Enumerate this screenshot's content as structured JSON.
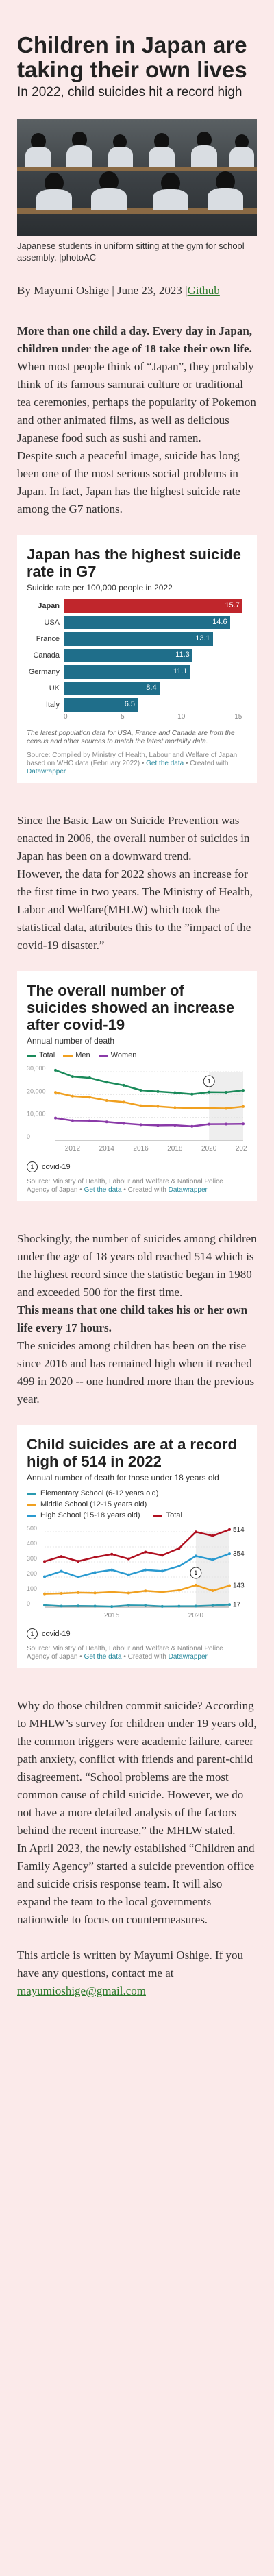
{
  "header": {
    "title": "Children in Japan are taking their own lives",
    "subtitle": "In 2022, child suicides hit a record high"
  },
  "photo": {
    "caption": "Japanese students in uniform sitting at the gym for school assembly. |photoAC"
  },
  "byline": {
    "text": "By Mayumi Oshige | June 23, 2023 |",
    "link": "Github"
  },
  "intro": {
    "lead_bold": "More than one child a day. Every day in Japan, children under the age of 18 take their own life.",
    "p1": "When most people think of “Japan”, they probably think of its famous samurai culture or traditional tea ceremonies, perhaps the popularity of Pokemon and other animated films, as well as delicious Japanese food such as sushi and ramen.",
    "p2": "Despite such a peaceful image, suicide has long been one of the most serious social problems in Japan. In fact, Japan has the highest suicide rate among the G7 nations."
  },
  "chart1": {
    "title": "Japan has the highest suicide rate in G7",
    "subtitle": "Suicide rate per 100,000 people in 2022",
    "note": "The latest population data for USA, France and Canada are from the census and other sources to match the latest mortality data.",
    "source": "Source: Compiled by Ministry of Health, Labour and Welfare of Japan based on WHO data (February 2022) •",
    "source_link1": "Get the data",
    "source_sep": "• Created with",
    "source_link2": "Datawrapper"
  },
  "chart_data": [
    {
      "type": "bar",
      "title": "Japan has the highest suicide rate in G7",
      "subtitle": "Suicide rate per 100,000 people in 2022",
      "categories": [
        "Japan",
        "USA",
        "France",
        "Canada",
        "Germany",
        "UK",
        "Italy"
      ],
      "values": [
        15.7,
        14.6,
        13.1,
        11.3,
        11.1,
        8.4,
        6.5
      ],
      "value_labels": [
        "15.7",
        "14.6",
        "13.1",
        "11.3",
        "11.1",
        "8.4",
        "6.5"
      ],
      "xlim": [
        0,
        15
      ],
      "xticks": [
        "0",
        "5",
        "10",
        "15"
      ],
      "colors": {
        "highlight": "#c0262c",
        "default": "#1f6e8a"
      }
    },
    {
      "type": "line",
      "title": "The overall number of suicides showed an increase after covid-19",
      "subtitle": "Annual number of death",
      "x": [
        2011,
        2012,
        2013,
        2014,
        2015,
        2016,
        2017,
        2018,
        2019,
        2020,
        2021,
        2022
      ],
      "series": [
        {
          "name": "Total",
          "color": "#1a8a5a",
          "values": [
            30651,
            27858,
            27283,
            25427,
            24025,
            21897,
            21321,
            20840,
            20169,
            21081,
            21007,
            21881
          ]
        },
        {
          "name": "Men",
          "color": "#f0a020",
          "values": [
            20955,
            19273,
            18787,
            17386,
            16681,
            15121,
            14826,
            14290,
            14078,
            14055,
            13939,
            14746
          ]
        },
        {
          "name": "Women",
          "color": "#8a3aa8",
          "values": [
            9696,
            8585,
            8496,
            8041,
            7344,
            6776,
            6495,
            6550,
            6091,
            7026,
            7068,
            7135
          ]
        }
      ],
      "ylim": [
        0,
        30000
      ],
      "yticks": [
        "0",
        "10,000",
        "20,000",
        "30,000"
      ],
      "xticks": [
        "2012",
        "2014",
        "2016",
        "2018",
        "2020",
        "2022"
      ],
      "annotation": "1",
      "annotation_label": "covid-19"
    },
    {
      "type": "line",
      "title": "Child suicides are at a record high of 514 in 2022",
      "subtitle": "Annual number of death for those under 18 years old",
      "x": [
        2011,
        2012,
        2013,
        2014,
        2015,
        2016,
        2017,
        2018,
        2019,
        2020,
        2021,
        2022
      ],
      "series": [
        {
          "name": "Elementary School (6-12 years old)",
          "color": "#2a9ab0",
          "values": [
            13,
            7,
            8,
            7,
            4,
            12,
            11,
            5,
            6,
            7,
            11,
            17
          ]
        },
        {
          "name": "Middle School (12-15 years old)",
          "color": "#f0a020",
          "values": [
            88,
            91,
            96,
            94,
            100,
            93,
            108,
            100,
            112,
            146,
            109,
            143
          ]
        },
        {
          "name": "High School (15-18 years old)",
          "color": "#2a9ad0",
          "values": [
            202,
            238,
            200,
            230,
            247,
            215,
            247,
            239,
            272,
            339,
            314,
            354
          ]
        },
        {
          "name": "Total",
          "color": "#b01020",
          "values": [
            303,
            336,
            304,
            331,
            351,
            320,
            366,
            344,
            390,
            499,
            473,
            514
          ]
        }
      ],
      "ylim": [
        0,
        500
      ],
      "yticks": [
        "0",
        "100",
        "200",
        "300",
        "400",
        "500"
      ],
      "xticks": [
        "2015",
        "2020"
      ],
      "end_labels": [
        "514",
        "354",
        "143",
        "17"
      ],
      "annotation": "1",
      "annotation_label": "covid-19"
    }
  ],
  "section2": {
    "p1": "Since the Basic Law on Suicide Prevention was enacted in 2006, the overall number of suicides in Japan has been on a downward trend.",
    "p2": "However, the data for 2022 shows an increase for the first time in two years. The Ministry of Health, Labor and Welfare(MHLW) which took the statistical data, attributes this to the ”impact of the covid-19 disaster.”"
  },
  "chart2": {
    "title": "The overall number of suicides showed an increase after covid-19",
    "subtitle": "Annual number of death",
    "legend": [
      "Total",
      "Men",
      "Women"
    ],
    "source": "Source: Ministry of Health, Labour and Welfare & National Police Agency of Japan •",
    "source_link1": "Get the data",
    "source_sep": "• Created with",
    "source_link2": "Datawrapper",
    "covid": "covid-19"
  },
  "section3": {
    "p1": "Shockingly, the number of suicides among children under the age of 18 years old reached 514 which is the highest record since the statistic began in 1980 and exceeded 500 for the first time.",
    "p2_bold": "This means that one child takes his or her own life every 17 hours.",
    "p3": "The suicides among children has been on the rise since 2016 and has remained high when it reached 499 in 2020 -- one hundred more than the previous year."
  },
  "chart3": {
    "title": "Child suicides are at a record high of 514 in 2022",
    "subtitle": "Annual number of death for those under 18 years old",
    "legend": [
      "Elementary School (6-12 years old)",
      "Middle School (12-15 years old)",
      "High School (15-18 years old)",
      "Total"
    ],
    "source": "Source: Ministry of Health, Labour and Welfare & National Police Agency of Japan •",
    "source_link1": "Get the data",
    "source_sep": "• Created with",
    "source_link2": "Datawrapper",
    "covid": "covid-19"
  },
  "section4": {
    "p1": "Why do those children commit suicide? According to MHLW’s survey for children under 19 years old, the common triggers were academic failure, career path anxiety, conflict with friends and parent-child disagreement. “School problems are the most common cause of child suicide. However, we do not have a more detailed analysis of the factors behind the recent increase,” the MHLW stated.",
    "p2": "In April 2023, the newly established “Children and Family Agency” started a suicide prevention office and suicide crisis response team. It will also expand the team to the local governments nationwide to focus on countermeasures."
  },
  "footer": {
    "text": "This article is written by Mayumi Oshige. If you have any questions, contact me at",
    "email": "mayumioshige@gmail.com"
  }
}
